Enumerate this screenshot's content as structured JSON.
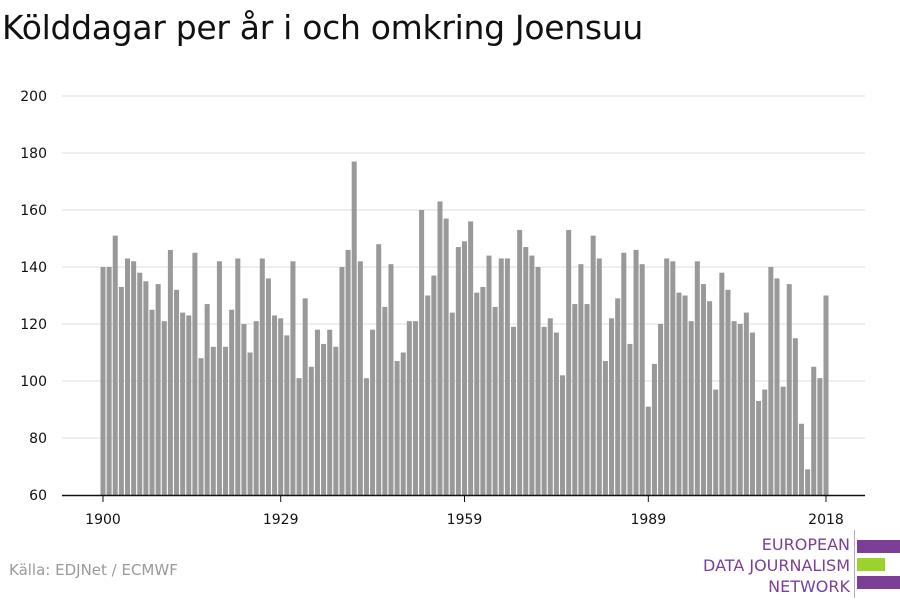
{
  "title": "Kölddagar per år i och omkring Joensuu",
  "source": "Källa: EDJNet / ECMWF",
  "logo": {
    "lines": [
      "EUROPEAN",
      "DATA JOURNALISM",
      "NETWORK"
    ],
    "colors": {
      "purple": "#7b3f98",
      "green": "#9bd22c"
    }
  },
  "colors": {
    "bar": "#999999",
    "grid": "#dddddd",
    "axis": "#111111",
    "text": "#111111"
  },
  "chart_data": {
    "type": "bar",
    "title": "Kölddagar per år i och omkring Joensuu",
    "xlabel": "",
    "ylabel": "",
    "ylim": [
      60,
      200
    ],
    "yticks": [
      60,
      80,
      100,
      120,
      140,
      160,
      180,
      200
    ],
    "xticks": [
      1900,
      1929,
      1959,
      1989,
      2018
    ],
    "grid": true,
    "legend": "none",
    "x": [
      1900,
      1901,
      1902,
      1903,
      1904,
      1905,
      1906,
      1907,
      1908,
      1909,
      1910,
      1911,
      1912,
      1913,
      1914,
      1915,
      1916,
      1917,
      1918,
      1919,
      1920,
      1921,
      1922,
      1923,
      1924,
      1925,
      1926,
      1927,
      1928,
      1929,
      1930,
      1931,
      1932,
      1933,
      1934,
      1935,
      1936,
      1937,
      1938,
      1939,
      1940,
      1941,
      1942,
      1943,
      1944,
      1945,
      1946,
      1947,
      1948,
      1949,
      1950,
      1951,
      1952,
      1953,
      1954,
      1955,
      1956,
      1957,
      1958,
      1959,
      1960,
      1961,
      1962,
      1963,
      1964,
      1965,
      1966,
      1967,
      1968,
      1969,
      1970,
      1971,
      1972,
      1973,
      1974,
      1975,
      1976,
      1977,
      1978,
      1979,
      1980,
      1981,
      1982,
      1983,
      1984,
      1985,
      1986,
      1987,
      1988,
      1989,
      1990,
      1991,
      1992,
      1993,
      1994,
      1995,
      1996,
      1997,
      1998,
      1999,
      2000,
      2001,
      2002,
      2003,
      2004,
      2005,
      2006,
      2007,
      2008,
      2009,
      2010,
      2011,
      2012,
      2013,
      2014,
      2015,
      2016,
      2017,
      2018
    ],
    "values": [
      140,
      140,
      151,
      133,
      143,
      142,
      138,
      135,
      125,
      134,
      121,
      146,
      132,
      124,
      123,
      145,
      108,
      127,
      112,
      142,
      112,
      125,
      143,
      120,
      110,
      121,
      143,
      136,
      123,
      122,
      116,
      142,
      101,
      129,
      105,
      118,
      113,
      118,
      112,
      140,
      146,
      177,
      142,
      101,
      118,
      148,
      126,
      141,
      107,
      110,
      121,
      121,
      160,
      130,
      137,
      163,
      157,
      124,
      147,
      149,
      156,
      131,
      133,
      144,
      126,
      143,
      143,
      119,
      153,
      147,
      144,
      140,
      119,
      122,
      117,
      102,
      153,
      127,
      141,
      127,
      151,
      143,
      107,
      122,
      129,
      145,
      113,
      146,
      141,
      91,
      106,
      120,
      143,
      142,
      131,
      130,
      121,
      142,
      134,
      128,
      97,
      138,
      132,
      121,
      120,
      124,
      117,
      93,
      97,
      140,
      136,
      98,
      134,
      115,
      85,
      69,
      105,
      101,
      130
    ]
  }
}
